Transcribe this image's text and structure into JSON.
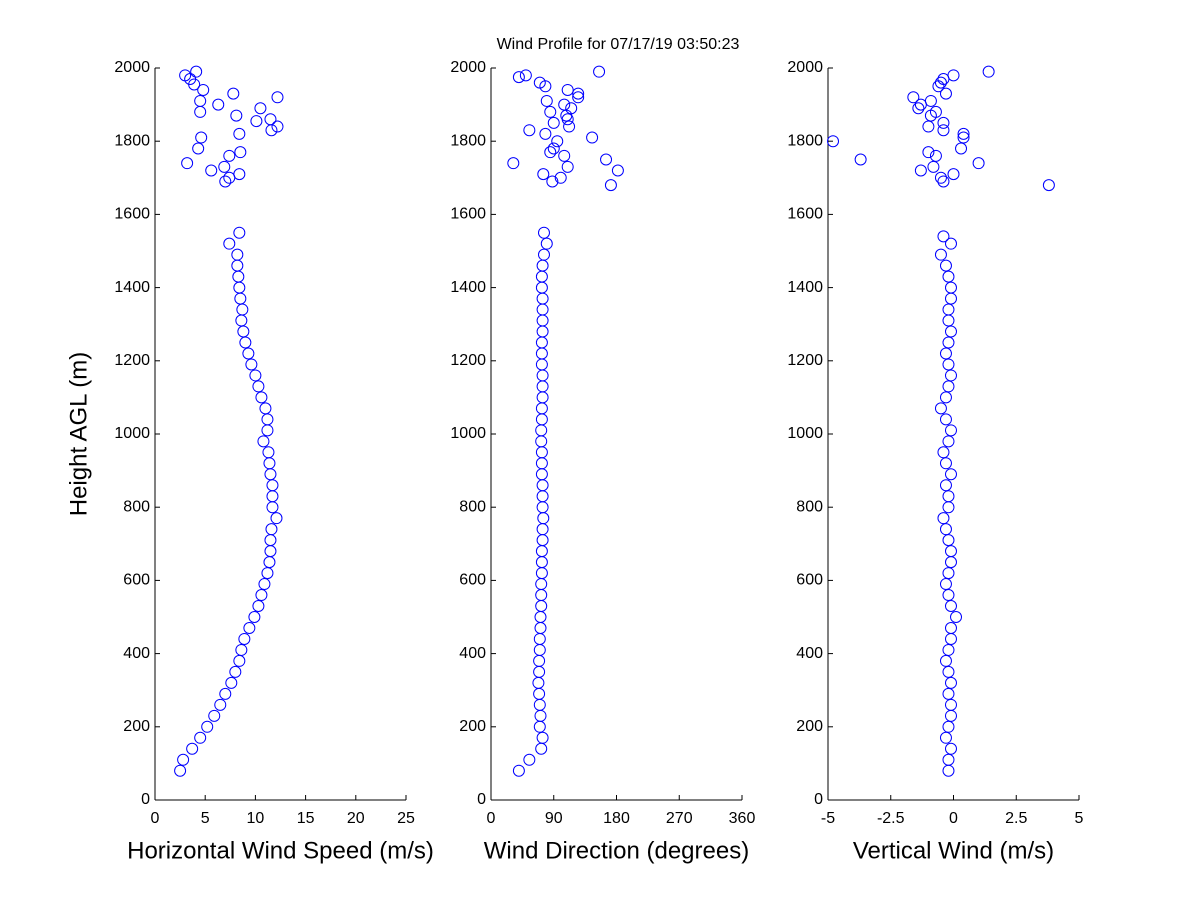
{
  "chart_data": [
    {
      "type": "scatter",
      "title": "Wind Profile for  07/17/19 03:50:23",
      "xlabel": "Horizontal Wind Speed (m/s)",
      "ylabel": "Height AGL (m)",
      "color": "#0000ff",
      "xlim": [
        0,
        25
      ],
      "xticks": [
        0,
        5,
        10,
        15,
        20,
        25
      ],
      "ylim": [
        0,
        2000
      ],
      "yticks": [
        0,
        200,
        400,
        600,
        800,
        1000,
        1200,
        1400,
        1600,
        1800,
        2000
      ],
      "x": [
        2.5,
        2.8,
        3.7,
        4.5,
        5.2,
        5.9,
        6.5,
        7.0,
        7.6,
        8.0,
        8.4,
        8.6,
        8.9,
        9.4,
        9.9,
        10.3,
        10.6,
        10.9,
        11.2,
        11.4,
        11.5,
        11.5,
        11.6,
        12.1,
        11.7,
        11.7,
        11.7,
        11.5,
        11.4,
        11.3,
        10.8,
        11.2,
        11.2,
        11.0,
        10.6,
        10.3,
        10.0,
        9.6,
        9.3,
        9.0,
        8.8,
        8.6,
        8.7,
        8.5,
        8.4,
        8.3,
        8.2,
        8.2,
        7.4,
        8.4,
        3.0,
        4.1,
        3.5,
        3.9,
        4.8,
        7.8,
        12.2,
        4.5,
        6.3,
        10.5,
        4.5,
        8.1,
        10.1,
        11.5,
        12.2,
        11.6,
        8.4,
        4.6,
        4.3,
        8.5,
        7.4,
        3.2,
        6.9,
        5.6,
        8.4,
        7.4,
        7.0
      ],
      "y": [
        80,
        110,
        140,
        170,
        200,
        230,
        260,
        290,
        320,
        350,
        380,
        410,
        440,
        470,
        500,
        530,
        560,
        590,
        620,
        650,
        680,
        710,
        740,
        770,
        800,
        830,
        860,
        890,
        920,
        950,
        980,
        1010,
        1040,
        1070,
        1100,
        1130,
        1160,
        1190,
        1220,
        1250,
        1280,
        1310,
        1340,
        1370,
        1400,
        1430,
        1460,
        1490,
        1520,
        1550,
        1980,
        1990,
        1970,
        1955,
        1940,
        1930,
        1920,
        1910,
        1900,
        1890,
        1880,
        1870,
        1855,
        1860,
        1840,
        1830,
        1820,
        1810,
        1780,
        1770,
        1760,
        1740,
        1730,
        1720,
        1710,
        1700,
        1690
      ]
    },
    {
      "type": "scatter",
      "xlabel": "Wind Direction (degrees)",
      "color": "#0000ff",
      "xlim": [
        0,
        360
      ],
      "xticks": [
        0,
        90,
        180,
        270,
        360
      ],
      "ylim": [
        0,
        2000
      ],
      "yticks": [
        0,
        200,
        400,
        600,
        800,
        1000,
        1200,
        1400,
        1600,
        1800,
        2000
      ],
      "x": [
        40,
        55,
        72,
        74,
        70,
        71,
        70,
        69,
        68,
        69,
        69,
        70,
        70,
        71,
        71,
        72,
        72,
        72,
        73,
        73,
        73,
        74,
        74,
        75,
        74,
        74,
        74,
        73,
        73,
        73,
        72,
        72,
        73,
        73,
        74,
        74,
        74,
        73,
        73,
        73,
        74,
        74,
        74,
        74,
        73,
        73,
        74,
        76,
        80,
        76,
        155,
        40,
        50,
        70,
        78,
        110,
        125,
        125,
        80,
        105,
        115,
        85,
        108,
        110,
        90,
        112,
        55,
        78,
        145,
        95,
        90,
        85,
        105,
        165,
        32,
        110,
        182,
        75,
        100,
        88,
        172
      ],
      "y": [
        80,
        110,
        140,
        170,
        200,
        230,
        260,
        290,
        320,
        350,
        380,
        410,
        440,
        470,
        500,
        530,
        560,
        590,
        620,
        650,
        680,
        710,
        740,
        770,
        800,
        830,
        860,
        890,
        920,
        950,
        980,
        1010,
        1040,
        1070,
        1100,
        1130,
        1160,
        1190,
        1220,
        1250,
        1280,
        1310,
        1340,
        1370,
        1400,
        1430,
        1460,
        1490,
        1520,
        1550,
        1990,
        1975,
        1980,
        1960,
        1950,
        1940,
        1930,
        1920,
        1910,
        1900,
        1890,
        1880,
        1870,
        1860,
        1850,
        1840,
        1830,
        1820,
        1810,
        1800,
        1780,
        1770,
        1760,
        1750,
        1740,
        1730,
        1720,
        1710,
        1700,
        1690,
        1680
      ]
    },
    {
      "type": "scatter",
      "xlabel": "Vertical Wind (m/s)",
      "color": "#0000ff",
      "xlim": [
        -5,
        5
      ],
      "xticks": [
        -5,
        -2.5,
        0,
        2.5,
        5
      ],
      "ylim": [
        0,
        2000
      ],
      "yticks": [
        0,
        200,
        400,
        600,
        800,
        1000,
        1200,
        1400,
        1600,
        1800,
        2000
      ],
      "x": [
        -0.2,
        -0.2,
        -0.1,
        -0.3,
        -0.2,
        -0.1,
        -0.1,
        -0.2,
        -0.1,
        -0.2,
        -0.3,
        -0.2,
        -0.1,
        -0.1,
        0.1,
        -0.1,
        -0.2,
        -0.3,
        -0.2,
        -0.1,
        -0.1,
        -0.2,
        -0.3,
        -0.4,
        -0.2,
        -0.2,
        -0.3,
        -0.1,
        -0.3,
        -0.4,
        -0.2,
        -0.1,
        -0.3,
        -0.5,
        -0.3,
        -0.2,
        -0.1,
        -0.2,
        -0.3,
        -0.2,
        -0.1,
        -0.2,
        -0.2,
        -0.1,
        -0.1,
        -0.2,
        -0.3,
        -0.5,
        -0.1,
        -0.4,
        1.4,
        0,
        -0.4,
        -0.5,
        -0.6,
        -0.3,
        -1.6,
        -0.9,
        -1.3,
        -1.4,
        -0.7,
        -0.9,
        -0.4,
        -1.0,
        -0.4,
        0.4,
        0.4,
        -4.8,
        0.3,
        -1.0,
        -0.7,
        -3.7,
        1.0,
        -0.8,
        -1.3,
        0,
        -0.5,
        -0.4,
        3.8
      ],
      "y": [
        80,
        110,
        140,
        170,
        200,
        230,
        260,
        290,
        320,
        350,
        380,
        410,
        440,
        470,
        500,
        530,
        560,
        590,
        620,
        650,
        680,
        710,
        740,
        770,
        800,
        830,
        860,
        890,
        920,
        950,
        980,
        1010,
        1040,
        1070,
        1100,
        1130,
        1160,
        1190,
        1220,
        1250,
        1280,
        1310,
        1340,
        1370,
        1400,
        1430,
        1460,
        1490,
        1520,
        1540,
        1990,
        1980,
        1970,
        1960,
        1950,
        1930,
        1920,
        1910,
        1900,
        1890,
        1880,
        1870,
        1850,
        1840,
        1830,
        1820,
        1810,
        1800,
        1780,
        1770,
        1760,
        1750,
        1740,
        1730,
        1720,
        1710,
        1700,
        1690,
        1680
      ]
    }
  ]
}
